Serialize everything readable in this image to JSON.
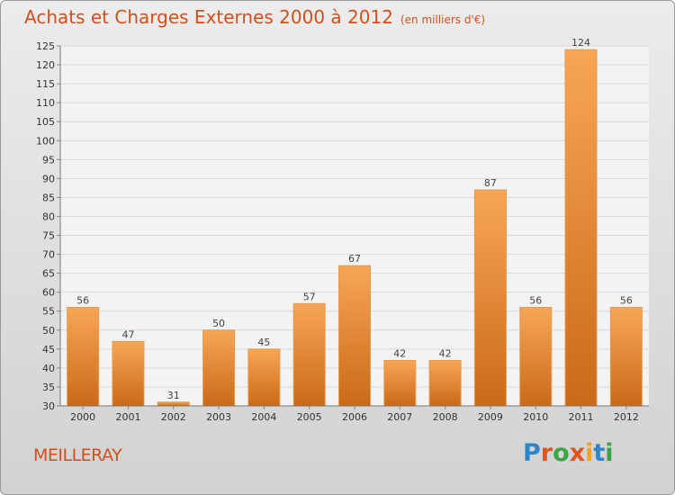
{
  "header": {
    "title": "Achats et Charges Externes 2000 à 2012",
    "subtitle": "(en milliers d'€)"
  },
  "footer": {
    "commune": "MEILLERAY",
    "logo_letters": [
      "P",
      "r",
      "o",
      "x",
      "i",
      "t",
      "i"
    ],
    "logo_colors": [
      "#2e86c8",
      "#e2531e",
      "#3aa545",
      "#e2531e",
      "#f2a227",
      "#2e86c8",
      "#3aa545"
    ]
  },
  "chart_data": {
    "type": "bar",
    "title": "Achats et Charges Externes 2000 à 2012",
    "subtitle": "(en milliers d'€)",
    "categories": [
      "2000",
      "2001",
      "2002",
      "2003",
      "2004",
      "2005",
      "2006",
      "2007",
      "2008",
      "2009",
      "2010",
      "2011",
      "2012"
    ],
    "values": [
      56,
      47,
      31,
      50,
      45,
      57,
      67,
      42,
      42,
      87,
      56,
      124,
      56
    ],
    "ylim": [
      30,
      125
    ],
    "yticks": [
      30,
      35,
      40,
      45,
      50,
      55,
      60,
      65,
      70,
      75,
      80,
      85,
      90,
      95,
      100,
      105,
      110,
      115,
      120,
      125
    ],
    "grid": true,
    "bar_color_top": "#f7a656",
    "bar_color_bottom": "#c96a19",
    "label_color": "#444444"
  }
}
